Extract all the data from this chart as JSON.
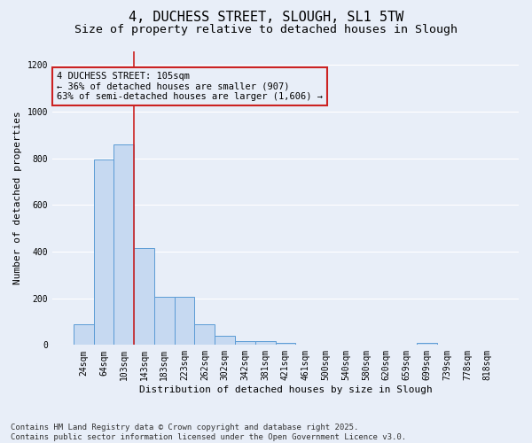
{
  "title_line1": "4, DUCHESS STREET, SLOUGH, SL1 5TW",
  "title_line2": "Size of property relative to detached houses in Slough",
  "xlabel": "Distribution of detached houses by size in Slough",
  "ylabel": "Number of detached properties",
  "bar_values": [
    90,
    795,
    860,
    415,
    205,
    205,
    90,
    40,
    15,
    15,
    10,
    0,
    0,
    0,
    0,
    0,
    0,
    10,
    0,
    0,
    0
  ],
  "categories": [
    "24sqm",
    "64sqm",
    "103sqm",
    "143sqm",
    "183sqm",
    "223sqm",
    "262sqm",
    "302sqm",
    "342sqm",
    "381sqm",
    "421sqm",
    "461sqm",
    "500sqm",
    "540sqm",
    "580sqm",
    "620sqm",
    "659sqm",
    "699sqm",
    "739sqm",
    "778sqm",
    "818sqm"
  ],
  "bar_color": "#c6d9f1",
  "bar_edge_color": "#5b9bd5",
  "vline_x": 2.5,
  "vline_color": "#cc2222",
  "annotation_text": "4 DUCHESS STREET: 105sqm\n← 36% of detached houses are smaller (907)\n63% of semi-detached houses are larger (1,606) →",
  "annotation_box_color": "#cc2222",
  "ylim": [
    0,
    1260
  ],
  "yticks": [
    0,
    200,
    400,
    600,
    800,
    1000,
    1200
  ],
  "background_color": "#e8eef8",
  "grid_color": "#ffffff",
  "footnote": "Contains HM Land Registry data © Crown copyright and database right 2025.\nContains public sector information licensed under the Open Government Licence v3.0.",
  "title_fontsize": 11,
  "subtitle_fontsize": 9.5,
  "label_fontsize": 8,
  "tick_fontsize": 7,
  "annot_fontsize": 7.5,
  "footnote_fontsize": 6.5
}
